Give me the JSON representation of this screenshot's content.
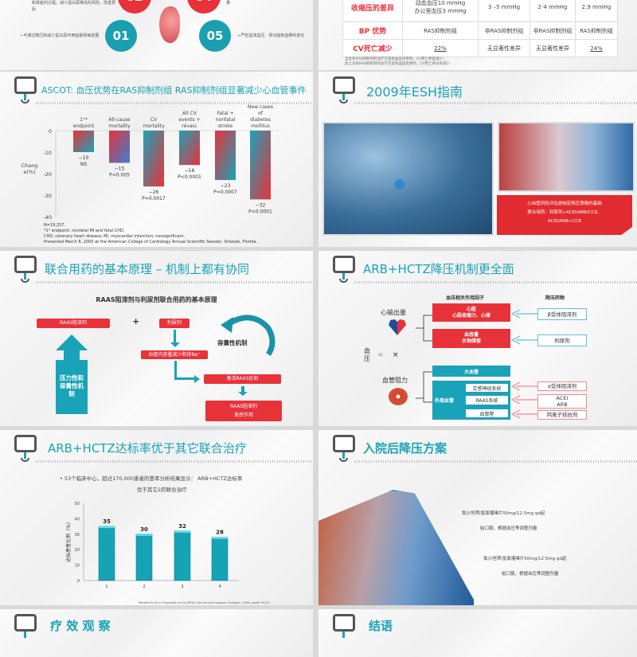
{
  "slide1_left": {
    "text_top": "和肾脏的过程，减少蛋白尿降低的风险，改善预后",
    "text_top_right": "量",
    "text_left": "➢可通过降压和减少蛋白尿作用延缓肾病进展",
    "text_right": "➢严密监测血压、肾功能和血钾的变化",
    "circles": [
      "02",
      "04",
      "01",
      "05"
    ]
  },
  "slide1_right": {
    "rows": [
      {
        "label": "收缩压的差异",
        "cells": [
          "动态血压10 mmHg\n办公室血压3 mmHg",
          "3 –5 mmHg",
          "2-4 mmHg",
          "2.9 mmHg"
        ]
      },
      {
        "label": "BP 优势",
        "cells": [
          "RAS抑制剂组",
          "非RAS抑制剂组",
          "非RAS抑制剂组",
          "RAS抑制剂组"
        ]
      },
      {
        "label": "CV死亡减少",
        "cells": [
          "22%",
          "无显著性差异",
          "无显著性差异",
          "24%"
        ]
      }
    ],
    "note1": "当含有RAS抑制剂的治疗方案有血压优势时，CV死亡明显减少；",
    "note2": "反之没有RAS抑制剂的治疗方案有血压优势时，CV死亡并没有减少"
  },
  "slide2_left": {
    "title": "ASCOT: 血压优势在RAS抑制剂组  RAS抑制剂组显著减少心血管事件",
    "ylabel": "Chang e(%)",
    "footnotes": [
      "N=19,257.",
      "*1° endpoint: nonfatal MI and fatal CHD.",
      "CHD, coronary heart disease; MI, myocardial infarction; nonsignificant.",
      "Presented March 8, 2005 at the American College of Cardiology Annual Scientific Session, Orlando, Florida."
    ]
  },
  "slide2_right": {
    "title": "2009年ESH指南",
    "red_lines": [
      "心血管风险评估是制定降压策略的基础",
      "联合用药：利尿剂+ACEI/ARB/CCB、",
      "ACEI/ARB+CCB"
    ]
  },
  "slide3_left": {
    "title": "联合用药的基本原理 – 机制上都有协同",
    "subtitle": "RAAS阻滞剂与利尿剂联合用药的基本原理",
    "raas": "RAAS阻滞剂",
    "plus": "+",
    "diuretic": "利尿剂",
    "volume": "血管内容量减少和排Na⁺",
    "activate": "激活RAAS反射",
    "raas_effect1": "RAAS阻滞剂",
    "raas_effect2": "发挥作用",
    "arrow_text": "压力性和容量性机制",
    "curve_label": "容量性机制"
  },
  "slide3_right": {
    "title": "ARB+HCTZ降压机制更全面",
    "col1": "血压相关作用因子",
    "col2": "降压药物",
    "cardiac_output": "心输出量",
    "bp": "血压",
    "equals": "=",
    "times": "×",
    "resistance": "血管阻力",
    "heart_title": "心脏",
    "heart_sub": "心肌收缩力、心律",
    "volume_title": "血容量",
    "volume_sub": "水钠储留",
    "large_vessel": "大血管",
    "peripheral": "外周血管",
    "sympathetic": "交感神经系统",
    "raas": "RAAS系统",
    "wall": "血管壁",
    "drugs": {
      "beta": "β受体阻滞剂",
      "diuretic": "利尿剂",
      "alpha": "α受体阻滞剂",
      "acei": "ACEI",
      "arb": "ARB",
      "ccb": "钙离子拮抗剂"
    }
  },
  "slide4_left": {
    "title": "ARB+HCTZ达标率优于其它联合治疗",
    "bullet1": "•  53个临床中心，超过170,000患者的荟萃分析结果显示：  ARB+HCTZ达标率",
    "bullet2": "优于其它2药联合治疗",
    "citation": "Petrella RJ, et al. Presented at the ISPOR 12th Annual European Congress, 2009, poster PCV17."
  },
  "slide4_right": {
    "title": "入院后降压方案",
    "lines": [
      "氯沙坦钾/氢氯噻嗪片50mg/12.5mg   qd起",
      "始口服，根据血压等调整剂量",
      "氯沙坦钾/氢氯噻嗪片50mg/12.5mg   qd起",
      "始口服，根据血压等调整剂量"
    ]
  },
  "slide5_left": {
    "title": "疗 效 观 察"
  },
  "slide5_right": {
    "title": "结语"
  },
  "colors": {
    "teal": "#1aa3b8",
    "red": "#e8323a"
  },
  "chart_data": [
    {
      "type": "bar",
      "categories": [
        "1°* endpoint",
        "All-cause mortality",
        "CV mortality",
        "All CV events + revasc",
        "Fatal + nonfatal stroke",
        "New cases of diabetes mellitus"
      ],
      "values": [
        -10,
        -15,
        -26,
        -16,
        -23,
        -32
      ],
      "annotations": [
        "NS",
        "P<0.005",
        "P=0.0017",
        "P<0.0001",
        "P=0.0007",
        "P<0.0001"
      ],
      "value_labels": [
        "−10",
        "−15",
        "−26",
        "−16",
        "−23",
        "−32"
      ],
      "ylabel": "Chang e(%)",
      "ylim": [
        -40,
        0
      ],
      "yticks": [
        "0",
        "-10",
        "-20",
        "-30",
        "-40"
      ]
    },
    {
      "type": "bar",
      "categories": [
        "1",
        "2",
        "3",
        "4"
      ],
      "values": [
        35,
        30,
        32,
        28
      ],
      "ylabel": "达标患者比例（%）",
      "ylim": [
        0,
        50
      ],
      "yticks": [
        "0",
        "10",
        "20",
        "30",
        "40",
        "50"
      ]
    }
  ]
}
